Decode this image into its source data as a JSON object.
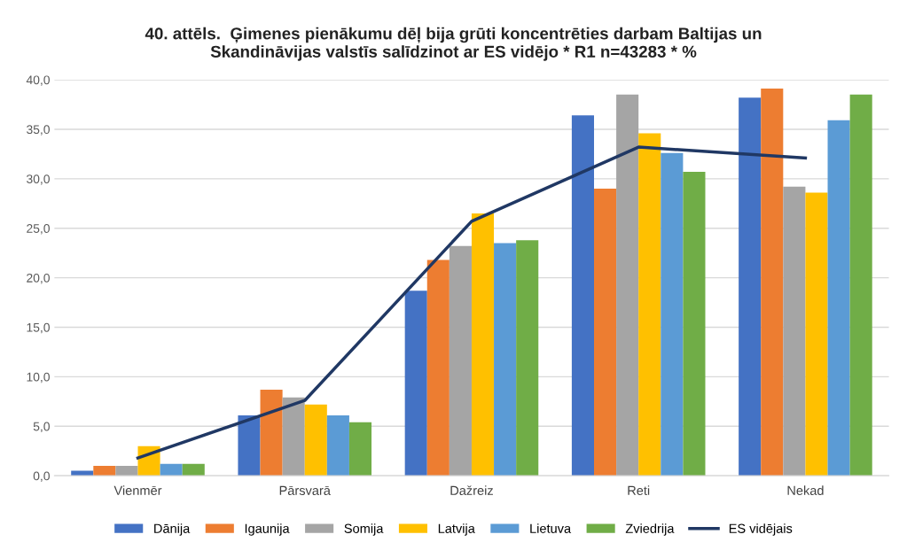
{
  "chart_data": {
    "type": "bar",
    "title": "40. attēls.  Ģimenes pienākumu dēļ bija grūti koncentrēties darbam Baltijas un\nSkandināvijas valstīs salīdzinot ar ES vidējo * R1 n=43283 * %",
    "categories": [
      "Vienmēr",
      "Pārsvarā",
      "Dažreiz",
      "Reti",
      "Nekad"
    ],
    "series": [
      {
        "name": "Dānija",
        "color": "#4472c4",
        "values": [
          0.5,
          6.1,
          18.7,
          36.4,
          38.2
        ]
      },
      {
        "name": "Igaunija",
        "color": "#ed7d31",
        "values": [
          1.0,
          8.7,
          21.8,
          29.0,
          39.1
        ]
      },
      {
        "name": "Somija",
        "color": "#a5a5a5",
        "values": [
          1.0,
          7.9,
          23.2,
          38.5,
          29.2
        ]
      },
      {
        "name": "Latvija",
        "color": "#ffc000",
        "values": [
          3.0,
          7.2,
          26.5,
          34.6,
          28.6
        ]
      },
      {
        "name": "Lietuva",
        "color": "#5b9bd5",
        "values": [
          1.2,
          6.1,
          23.5,
          32.6,
          35.9
        ]
      },
      {
        "name": "Zviedrija",
        "color": "#70ad47",
        "values": [
          1.2,
          5.4,
          23.8,
          30.7,
          38.5
        ]
      },
      {
        "name": "ES vidējais",
        "color": "#203864",
        "type": "line",
        "values": [
          1.8,
          7.6,
          25.7,
          33.2,
          32.1
        ]
      }
    ],
    "ylim": [
      0,
      40
    ],
    "yticks": [
      {
        "value": 0,
        "label": "0,0"
      },
      {
        "value": 5,
        "label": "5,0"
      },
      {
        "value": 10,
        "label": "10,0"
      },
      {
        "value": 15,
        "label": "15,0"
      },
      {
        "value": 20,
        "label": "20,0"
      },
      {
        "value": 25,
        "label": "25,0"
      },
      {
        "value": 30,
        "label": "30,0"
      },
      {
        "value": 35,
        "label": "35,0"
      },
      {
        "value": 40,
        "label": "40,0"
      }
    ],
    "grid": "y",
    "legend": "bottom"
  }
}
